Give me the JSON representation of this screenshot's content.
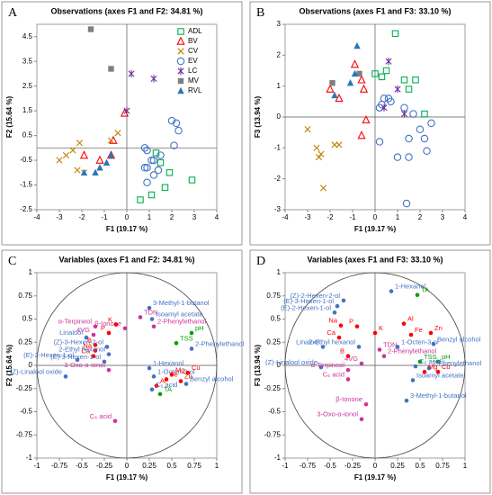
{
  "chart_data": [
    {
      "type": "scatter",
      "label": "A",
      "title": "Observations (axes F1 and F2: 34.81 %)",
      "x_label": "F1 (19.17 %)",
      "y_label": "F2 (15.64 %)",
      "xlim": [
        -4,
        4
      ],
      "xticks": [
        -4,
        -3,
        -2,
        -1,
        0,
        1,
        2,
        3,
        4
      ],
      "ylim": [
        -2.5,
        5
      ],
      "yticks": [
        -2.5,
        -1.5,
        -0.5,
        0.5,
        1.5,
        2.5,
        3.5,
        4.5
      ],
      "legend": "upper right",
      "series": [
        {
          "name": "ADL",
          "color": "#00b050",
          "marker": "square-open",
          "x": [
            1.3,
            1.5,
            1.9,
            2.9,
            1.7,
            0.6,
            1.1
          ],
          "y": [
            -0.2,
            -0.6,
            -1.0,
            -1.3,
            -1.6,
            -2.1,
            -1.9
          ]
        },
        {
          "name": "BV",
          "color": "#ff0000",
          "marker": "triangle-open",
          "x": [
            -0.1,
            -0.6,
            -0.7,
            -1.2,
            -1.9
          ],
          "y": [
            1.4,
            0.3,
            -0.3,
            -0.5,
            -0.3
          ]
        },
        {
          "name": "CV",
          "color": "#c08000",
          "marker": "cross",
          "x": [
            -2.1,
            -2.4,
            -3.0,
            -2.7,
            -1.9,
            -0.7,
            -0.4,
            -2.2
          ],
          "y": [
            0.2,
            -0.1,
            -0.5,
            -0.3,
            -1.0,
            0.3,
            0.6,
            -0.9
          ]
        },
        {
          "name": "EV",
          "color": "#4472c4",
          "marker": "circle-open",
          "x": [
            1.5,
            2.0,
            2.2,
            2.3,
            2.1,
            1.2,
            0.8,
            0.9,
            0.9,
            1.2,
            0.9,
            1.4,
            0.8,
            1.1
          ],
          "y": [
            -0.3,
            1.1,
            1.0,
            0.7,
            0.1,
            -0.5,
            -0.8,
            -0.8,
            -0.1,
            -1.1,
            -1.4,
            -0.9,
            0.0,
            -0.5
          ]
        },
        {
          "name": "LC",
          "color": "#7030a0",
          "marker": "star",
          "x": [
            0.2,
            1.2,
            0.0
          ],
          "y": [
            3.0,
            2.8,
            1.5
          ]
        },
        {
          "name": "MV",
          "color": "#7f7f7f",
          "marker": "square",
          "x": [
            -1.6,
            -0.7
          ],
          "y": [
            4.8,
            3.2
          ]
        },
        {
          "name": "RVL",
          "color": "#2e75b6",
          "marker": "triangle",
          "x": [
            -1.4,
            -1.9,
            -1.2,
            -0.9,
            -0.7
          ],
          "y": [
            -1.0,
            -1.0,
            -0.8,
            -0.6,
            -0.3
          ]
        }
      ]
    },
    {
      "type": "scatter",
      "label": "B",
      "title": "Observations (axes F1 and F3: 33.10 %)",
      "x_label": "F1 (19.17 %)",
      "y_label": "F3 (13.94 %)",
      "xlim": [
        -4,
        4
      ],
      "xticks": [
        -4,
        -3,
        -2,
        -1,
        0,
        1,
        2,
        3,
        4
      ],
      "ylim": [
        -3,
        3
      ],
      "yticks": [
        -3,
        -2,
        -1,
        0,
        1,
        2,
        3
      ],
      "series": [
        {
          "name": "ADL",
          "color": "#00b050",
          "marker": "square-open",
          "x": [
            0.9,
            0.5,
            0.3,
            1.3,
            1.8,
            1.5,
            2.2,
            0.0
          ],
          "y": [
            2.7,
            1.5,
            1.3,
            1.2,
            1.2,
            0.9,
            0.1,
            1.4
          ]
        },
        {
          "name": "BV",
          "color": "#ff0000",
          "marker": "triangle-open",
          "x": [
            -0.9,
            -0.6,
            -2.0,
            -0.5,
            -1.6,
            -0.4,
            -0.6
          ],
          "y": [
            1.7,
            1.2,
            0.9,
            0.9,
            0.6,
            -0.1,
            -0.6
          ]
        },
        {
          "name": "CV",
          "color": "#c08000",
          "marker": "cross",
          "x": [
            -3.0,
            -2.6,
            -2.5,
            -2.4,
            -1.8,
            -1.6,
            -2.3
          ],
          "y": [
            -0.4,
            -1.0,
            -1.3,
            -1.2,
            -0.9,
            -0.9,
            -2.3
          ]
        },
        {
          "name": "EV",
          "color": "#4472c4",
          "marker": "circle-open",
          "x": [
            0.3,
            0.4,
            0.6,
            0.7,
            0.2,
            1.3,
            1.7,
            2.5,
            2.0,
            1.5,
            2.2,
            2.3,
            1.0,
            1.5,
            0.2,
            1.4
          ],
          "y": [
            0.4,
            0.6,
            0.6,
            0.5,
            0.3,
            0.3,
            0.1,
            -0.2,
            -0.4,
            -0.7,
            -0.7,
            -1.1,
            -1.3,
            -1.3,
            -0.8,
            -2.8
          ]
        },
        {
          "name": "LC",
          "color": "#7030a0",
          "marker": "star",
          "x": [
            0.6,
            1.0,
            0.4,
            1.3
          ],
          "y": [
            1.8,
            0.9,
            0.3,
            0.1
          ]
        },
        {
          "name": "MV",
          "color": "#7f7f7f",
          "marker": "square",
          "x": [
            -1.9,
            -0.7
          ],
          "y": [
            1.1,
            1.4
          ]
        },
        {
          "name": "RVL",
          "color": "#2e75b6",
          "marker": "triangle",
          "x": [
            -0.8,
            -1.8,
            -1.1,
            -0.9
          ],
          "y": [
            2.3,
            0.7,
            1.1,
            1.4
          ]
        }
      ]
    },
    {
      "type": "circle",
      "label": "C",
      "title": "Variables (axes F1 and F2: 34.81 %)",
      "x_label": "F1 (19.17 %)",
      "y_label": "F2 (15.64 %)",
      "xlim": [
        -1,
        1
      ],
      "xticks": [
        -1,
        -0.75,
        -0.5,
        -0.25,
        0,
        0.25,
        0.5,
        0.75,
        1
      ],
      "ylim": [
        -1,
        1
      ],
      "yticks": [
        -1,
        -0.75,
        -0.5,
        -0.25,
        0,
        0.25,
        0.5,
        0.75,
        1
      ],
      "points": [
        {
          "label": "3-Methyl-1-butanol",
          "color": "#4472c4",
          "x": 0.25,
          "y": 0.62
        },
        {
          "label": "TDN",
          "color": "#cc3399",
          "x": 0.15,
          "y": 0.52
        },
        {
          "label": "Isoamyl acetate",
          "color": "#4472c4",
          "x": 0.28,
          "y": 0.5
        },
        {
          "label": "2-Phenylethanol",
          "color": "#cc3399",
          "x": 0.3,
          "y": 0.42
        },
        {
          "label": "α-Terpineol",
          "color": "#cc3399",
          "x": -0.35,
          "y": 0.42
        },
        {
          "label": "β-Ionone",
          "color": "#cc3399",
          "x": -0.02,
          "y": 0.4
        },
        {
          "label": "K",
          "color": "#ff0000",
          "x": -0.12,
          "y": 0.44
        },
        {
          "label": "P",
          "color": "#ff0000",
          "x": -0.2,
          "y": 0.35
        },
        {
          "label": "4VG",
          "color": "#cc3399",
          "x": -0.37,
          "y": 0.33
        },
        {
          "label": "Linalool",
          "color": "#4472c4",
          "x": -0.45,
          "y": 0.3
        },
        {
          "label": "pH",
          "color": "#00a000",
          "x": 0.72,
          "y": 0.35
        },
        {
          "label": "B",
          "color": "#ff0000",
          "x": -0.35,
          "y": 0.22
        },
        {
          "label": "(Z)-3-Hexen-2-ol",
          "color": "#4472c4",
          "x": -0.22,
          "y": 0.2
        },
        {
          "label": "Na",
          "color": "#ff0000",
          "x": -0.35,
          "y": 0.16
        },
        {
          "label": "TSS",
          "color": "#00a000",
          "x": 0.55,
          "y": 0.24
        },
        {
          "label": "2-Phenylethanol",
          "color": "#4472c4",
          "x": 0.72,
          "y": 0.18
        },
        {
          "label": "Ca",
          "color": "#ff0000",
          "x": -0.37,
          "y": 0.1
        },
        {
          "label": "2-Ethyl hexanol",
          "color": "#4472c4",
          "x": -0.2,
          "y": 0.12
        },
        {
          "label": "(E)-2-Hexen-1-ol",
          "color": "#4472c4",
          "x": -0.55,
          "y": 0.06
        },
        {
          "label": "(E)-3-Hexen-1-ol",
          "color": "#4472c4",
          "x": -0.25,
          "y": 0.04
        },
        {
          "label": "1-Hexanol",
          "color": "#4472c4",
          "x": 0.25,
          "y": -0.03
        },
        {
          "label": "3-Oxo-α-ionol",
          "color": "#cc3399",
          "x": -0.2,
          "y": -0.05
        },
        {
          "label": "(Z)-Linalool oxide",
          "color": "#4472c4",
          "x": -0.68,
          "y": -0.12
        },
        {
          "label": "1-Octen-3-ol",
          "color": "#4472c4",
          "x": 0.3,
          "y": -0.12
        },
        {
          "label": "Mg",
          "color": "#ff0000",
          "x": 0.5,
          "y": -0.1
        },
        {
          "label": "Cu",
          "color": "#ff0000",
          "x": 0.68,
          "y": -0.08
        },
        {
          "label": "Fe",
          "color": "#ff0000",
          "x": 0.44,
          "y": -0.15
        },
        {
          "label": "Zn",
          "color": "#ff0000",
          "x": 0.6,
          "y": -0.17
        },
        {
          "label": "Al",
          "color": "#ff0000",
          "x": 0.33,
          "y": -0.22
        },
        {
          "label": "C₆ acid",
          "color": "#4472c4",
          "x": 0.28,
          "y": -0.26
        },
        {
          "label": "Benzyl alcohol",
          "color": "#4472c4",
          "x": 0.66,
          "y": -0.2
        },
        {
          "label": "TA",
          "color": "#00a000",
          "x": 0.37,
          "y": -0.31
        },
        {
          "label": "C₆ acid",
          "color": "#cc3399",
          "x": -0.13,
          "y": -0.6
        }
      ]
    },
    {
      "type": "circle",
      "label": "D",
      "title": "Variables (axes F1 and F3: 33.10 %)",
      "x_label": "F1 (19.17 %)",
      "y_label": "F3 (13.94 %)",
      "xlim": [
        -1,
        1
      ],
      "xticks": [
        -1,
        -0.75,
        -0.5,
        -0.25,
        0,
        0.25,
        0.5,
        0.75,
        1
      ],
      "ylim": [
        -1,
        1
      ],
      "yticks": [
        -1,
        -0.75,
        -0.5,
        -0.25,
        0,
        0.25,
        0.5,
        0.75,
        1
      ],
      "points": [
        {
          "label": "1-Hexanol",
          "color": "#4472c4",
          "x": 0.18,
          "y": 0.8
        },
        {
          "label": "TA",
          "color": "#00a000",
          "x": 0.47,
          "y": 0.76
        },
        {
          "label": "(Z)-2-Hexen-2-ol",
          "color": "#4472c4",
          "x": -0.35,
          "y": 0.7
        },
        {
          "label": "(E)-3-Hexen-1-ol",
          "color": "#4472c4",
          "x": -0.42,
          "y": 0.64
        },
        {
          "label": "(E)-2-Hexen-1-ol",
          "color": "#4472c4",
          "x": -0.45,
          "y": 0.57
        },
        {
          "label": "Na",
          "color": "#ff0000",
          "x": -0.38,
          "y": 0.43
        },
        {
          "label": "P",
          "color": "#ff0000",
          "x": -0.2,
          "y": 0.42
        },
        {
          "label": "Al",
          "color": "#ff0000",
          "x": 0.32,
          "y": 0.45
        },
        {
          "label": "K",
          "color": "#ff0000",
          "x": 0.0,
          "y": 0.35
        },
        {
          "label": "Fe",
          "color": "#ff0000",
          "x": 0.4,
          "y": 0.33
        },
        {
          "label": "Zn",
          "color": "#ff0000",
          "x": 0.62,
          "y": 0.35
        },
        {
          "label": "Ca",
          "color": "#ff0000",
          "x": -0.4,
          "y": 0.3
        },
        {
          "label": "Linalool",
          "color": "#4472c4",
          "x": -0.58,
          "y": 0.2
        },
        {
          "label": "2-Ethyl hexanol",
          "color": "#4472c4",
          "x": -0.18,
          "y": 0.2
        },
        {
          "label": "TDN",
          "color": "#cc3399",
          "x": 0.05,
          "y": 0.17
        },
        {
          "label": "1-Octen-3-ol",
          "color": "#4472c4",
          "x": 0.25,
          "y": 0.2
        },
        {
          "label": "Benzyl alcohol",
          "color": "#4472c4",
          "x": 0.65,
          "y": 0.23
        },
        {
          "label": "B",
          "color": "#ff0000",
          "x": -0.3,
          "y": 0.1
        },
        {
          "label": "2-Phenylethanol",
          "color": "#cc3399",
          "x": 0.1,
          "y": 0.1
        },
        {
          "label": "TSS",
          "color": "#00a000",
          "x": 0.5,
          "y": 0.04
        },
        {
          "label": "pH",
          "color": "#00a000",
          "x": 0.7,
          "y": 0.04
        },
        {
          "label": "4VG",
          "color": "#cc3399",
          "x": -0.15,
          "y": 0.02
        },
        {
          "label": "(Z)-Linalool oxide",
          "color": "#4472c4",
          "x": -0.6,
          "y": -0.02
        },
        {
          "label": "C₆ acid",
          "color": "#4472c4",
          "x": 0.45,
          "y": -0.01
        },
        {
          "label": "2-Phenylethanol",
          "color": "#4472c4",
          "x": 0.6,
          "y": -0.03
        },
        {
          "label": "α-Terpineol",
          "color": "#cc3399",
          "x": -0.3,
          "y": -0.05
        },
        {
          "label": "Mg",
          "color": "#ff0000",
          "x": 0.55,
          "y": -0.07
        },
        {
          "label": "Cu",
          "color": "#ff0000",
          "x": 0.7,
          "y": -0.07
        },
        {
          "label": "Isoamyl acetate",
          "color": "#4472c4",
          "x": 0.42,
          "y": -0.16
        },
        {
          "label": "C₆ acid",
          "color": "#cc3399",
          "x": -0.3,
          "y": -0.15
        },
        {
          "label": "β-Ionone",
          "color": "#cc3399",
          "x": -0.1,
          "y": -0.42
        },
        {
          "label": "3-Methyl-1-butanol",
          "color": "#4472c4",
          "x": 0.35,
          "y": -0.38
        },
        {
          "label": "3-Oxo-α-ionol",
          "color": "#cc3399",
          "x": -0.15,
          "y": -0.58
        }
      ]
    }
  ]
}
